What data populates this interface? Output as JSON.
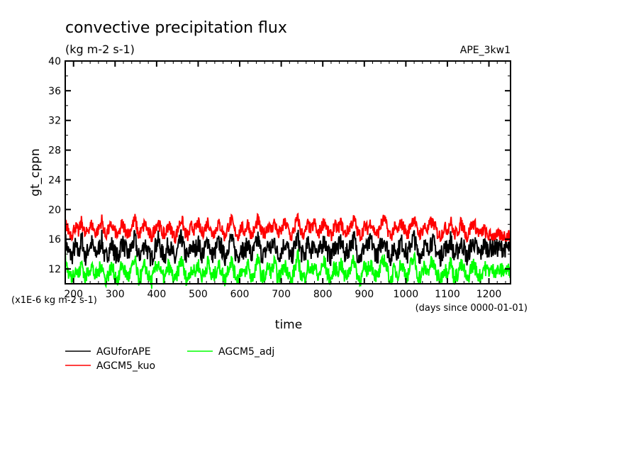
{
  "chart_data": {
    "type": "line",
    "title": "convective precipitation flux",
    "subtitle": "(kg m-2 s-1)",
    "experiment_label": "APE_3kw1",
    "xlabel": "time",
    "xunits": "(days since 0000-01-01)",
    "ylabel": "gt_cppn",
    "yunits": "(x1E-6 kg m-2 s-1)",
    "xlim": [
      180,
      1252
    ],
    "ylim": [
      10,
      40
    ],
    "x_ticks": [
      "200",
      "300",
      "400",
      "500",
      "600",
      "700",
      "800",
      "900",
      "1000",
      "1100",
      "1200"
    ],
    "x_tick_values": [
      200,
      300,
      400,
      500,
      600,
      700,
      800,
      900,
      1000,
      1100,
      1200
    ],
    "y_ticks": [
      "12",
      "16",
      "20",
      "24",
      "28",
      "32",
      "36",
      "40"
    ],
    "y_tick_values": [
      12,
      16,
      20,
      24,
      28,
      32,
      36,
      40
    ],
    "grid": false,
    "legend_position": "bottom-left",
    "x_start": 180,
    "x_step": 8,
    "series": [
      {
        "name": "AGUforAPE",
        "color": "#000000",
        "mean": 14.6,
        "amplitude": 1.6,
        "values": [
          15.8,
          14.2,
          13.6,
          15.1,
          14.0,
          16.2,
          13.4,
          14.8,
          15.5,
          13.9,
          14.6,
          16.0,
          13.2,
          14.4,
          15.3,
          14.1,
          13.5,
          15.8,
          14.7,
          13.8,
          15.0,
          16.1,
          13.6,
          14.3,
          15.6,
          14.0,
          13.3,
          14.9,
          15.9,
          14.2,
          13.7,
          15.4,
          14.5,
          13.1,
          14.8,
          16.3,
          14.0,
          13.6,
          15.2,
          14.4,
          15.7,
          13.9,
          14.6,
          16.0,
          13.8,
          14.2,
          15.5,
          14.9,
          13.4,
          15.1,
          16.2,
          14.3,
          13.7,
          15.0,
          14.1,
          15.8,
          13.5,
          14.7,
          16.1,
          14.0,
          13.9,
          15.3,
          14.6,
          15.9,
          13.6,
          14.4,
          15.6,
          14.8,
          13.2,
          15.0,
          16.4,
          14.1,
          13.8,
          15.4,
          14.5,
          15.7,
          13.7,
          14.9,
          16.0,
          14.2,
          13.5,
          15.2,
          14.7,
          15.8,
          13.9,
          14.3,
          15.5,
          16.1,
          14.0,
          13.6,
          15.1,
          14.8,
          15.9,
          14.4,
          13.8,
          15.3,
          16.2,
          14.6,
          13.4,
          15.0,
          14.2,
          15.7,
          14.9,
          13.7,
          15.6,
          16.3,
          14.1,
          13.9,
          15.2,
          14.5,
          15.8,
          15.4,
          14.0,
          13.6,
          15.0,
          14.7,
          16.0,
          13.8,
          14.3,
          15.5,
          14.9,
          13.2,
          15.1,
          15.6,
          14.4,
          13.9,
          15.3,
          14.8
        ],
        "ymin_cap": 12.3,
        "ymax_cap": 17.8
      },
      {
        "name": "AGCM5_kuo",
        "color": "#ff0000",
        "mean": 17.2,
        "amplitude": 1.1,
        "values": [
          18.2,
          17.1,
          16.6,
          17.8,
          16.9,
          18.5,
          16.4,
          17.5,
          18.0,
          16.8,
          17.3,
          18.6,
          16.5,
          17.2,
          17.9,
          17.0,
          16.3,
          18.1,
          17.4,
          16.7,
          17.7,
          18.7,
          16.6,
          17.1,
          18.2,
          16.9,
          16.2,
          17.6,
          18.4,
          17.0,
          16.5,
          17.9,
          17.3,
          16.1,
          17.5,
          18.8,
          16.9,
          16.4,
          17.8,
          17.2,
          18.3,
          16.7,
          17.4,
          18.5,
          16.8,
          17.0,
          18.1,
          17.6,
          16.3,
          17.7,
          18.6,
          17.1,
          16.5,
          17.6,
          17.0,
          18.3,
          16.4,
          17.3,
          18.7,
          16.9,
          16.8,
          17.9,
          17.2,
          18.4,
          16.6,
          17.1,
          18.2,
          17.5,
          16.2,
          17.6,
          18.9,
          16.9,
          16.6,
          18.0,
          17.2,
          18.3,
          16.5,
          17.5,
          18.6,
          17.0,
          16.4,
          17.8,
          17.4,
          18.2,
          16.7,
          17.1,
          18.0,
          18.7,
          16.9,
          16.5,
          17.7,
          17.4,
          18.4,
          17.1,
          16.6,
          17.9,
          18.8,
          17.3,
          16.3,
          17.6,
          17.0,
          18.2,
          17.5,
          16.5,
          18.1,
          18.9,
          16.9,
          16.7,
          17.8,
          17.2,
          18.3,
          18.0,
          16.8,
          16.4,
          17.6,
          17.3,
          18.5,
          16.6,
          17.0,
          18.1,
          17.5,
          16.2,
          17.7,
          18.2,
          17.1,
          16.6,
          17.4,
          16.5
        ],
        "ymin_cap": 15.2,
        "ymax_cap": 19.4
      },
      {
        "name": "AGCM5_adj",
        "color": "#00ff00",
        "mean": 11.8,
        "amplitude": 1.3,
        "values": [
          13.6,
          11.4,
          10.8,
          12.2,
          11.0,
          12.9,
          10.6,
          11.8,
          12.5,
          10.9,
          11.5,
          12.8,
          10.4,
          11.3,
          12.3,
          11.1,
          10.5,
          12.7,
          11.6,
          10.8,
          12.0,
          13.1,
          10.6,
          11.2,
          12.6,
          11.0,
          10.3,
          11.9,
          12.9,
          11.1,
          10.7,
          12.4,
          11.5,
          10.2,
          11.8,
          13.4,
          11.0,
          10.6,
          12.2,
          11.4,
          12.7,
          10.9,
          11.6,
          13.0,
          10.8,
          11.2,
          12.5,
          11.9,
          10.4,
          12.1,
          13.2,
          11.3,
          10.7,
          12.0,
          11.1,
          12.8,
          10.5,
          11.7,
          13.3,
          11.0,
          10.9,
          12.3,
          11.6,
          12.9,
          10.6,
          11.4,
          12.6,
          11.8,
          10.2,
          12.0,
          13.6,
          11.1,
          10.8,
          12.4,
          11.5,
          12.7,
          10.7,
          11.9,
          13.0,
          11.2,
          10.5,
          12.2,
          11.7,
          12.8,
          10.9,
          11.3,
          12.5,
          13.1,
          11.0,
          10.6,
          12.1,
          11.8,
          12.9,
          11.4,
          10.8,
          12.3,
          13.4,
          11.6,
          10.4,
          12.0,
          11.2,
          12.7,
          11.9,
          10.7,
          12.6,
          13.5,
          11.1,
          10.9,
          12.2,
          11.5,
          12.8,
          12.4,
          11.0,
          10.6,
          12.0,
          11.7,
          13.0,
          10.8,
          11.3,
          12.5,
          11.9,
          10.2,
          12.1,
          12.6,
          11.4,
          10.9,
          12.3,
          11.8
        ],
        "ymin_cap": 8.9,
        "ymax_cap": 14.9
      }
    ]
  }
}
